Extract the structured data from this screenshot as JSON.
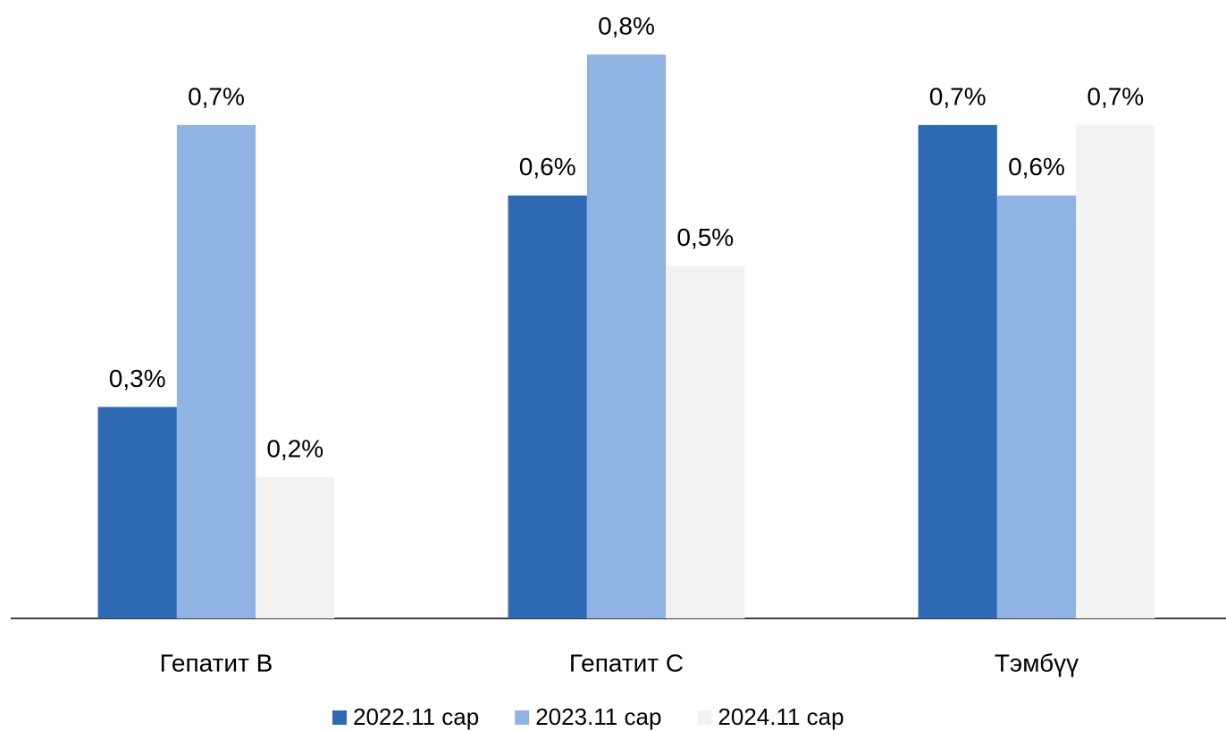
{
  "chart_data": {
    "type": "bar",
    "categories": [
      "Гепатит B",
      "Гепатит C",
      "Тэмбүү"
    ],
    "series": [
      {
        "name": "2022.11 сар",
        "color": "#2e6ab4",
        "values": [
          0.3,
          0.6,
          0.7
        ],
        "value_labels": [
          "0,3%",
          "0,6%",
          "0,7%"
        ]
      },
      {
        "name": "2023.11 сар",
        "color": "#8fb4e3",
        "values": [
          0.7,
          0.8,
          0.6
        ],
        "value_labels": [
          "0,7%",
          "0,8%",
          "0,6%"
        ]
      },
      {
        "name": "2024.11 сар",
        "color": "#f2f2f2",
        "values": [
          0.2,
          0.5,
          0.7
        ],
        "value_labels": [
          "0,2%",
          "0,5%",
          "0,7%"
        ]
      }
    ],
    "ylim": [
      0,
      0.8
    ],
    "legend": "bottom"
  }
}
